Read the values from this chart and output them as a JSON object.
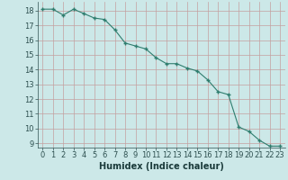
{
  "x": [
    0,
    1,
    2,
    3,
    4,
    5,
    6,
    7,
    8,
    9,
    10,
    11,
    12,
    13,
    14,
    15,
    16,
    17,
    18,
    19,
    20,
    21,
    22,
    23
  ],
  "y": [
    18.1,
    18.1,
    17.7,
    18.1,
    17.8,
    17.5,
    17.4,
    16.7,
    15.8,
    15.6,
    15.4,
    14.8,
    14.4,
    14.4,
    14.1,
    13.9,
    13.3,
    12.5,
    12.3,
    10.1,
    9.8,
    9.2,
    8.8,
    8.8
  ],
  "xlim": [
    -0.5,
    23.5
  ],
  "ylim": [
    8.7,
    18.6
  ],
  "yticks": [
    9,
    10,
    11,
    12,
    13,
    14,
    15,
    16,
    17,
    18
  ],
  "xticks": [
    0,
    1,
    2,
    3,
    4,
    5,
    6,
    7,
    8,
    9,
    10,
    11,
    12,
    13,
    14,
    15,
    16,
    17,
    18,
    19,
    20,
    21,
    22,
    23
  ],
  "xlabel": "Humidex (Indice chaleur)",
  "line_color": "#2e7d6e",
  "marker_color": "#2e7d6e",
  "bg_color": "#cce8e8",
  "grid_color_v": "#c4a0a0",
  "grid_color_h": "#c4a0a0",
  "tick_label_color": "#2e5050",
  "xlabel_color": "#1a3a3a",
  "xlabel_fontsize": 7,
  "tick_fontsize": 6
}
